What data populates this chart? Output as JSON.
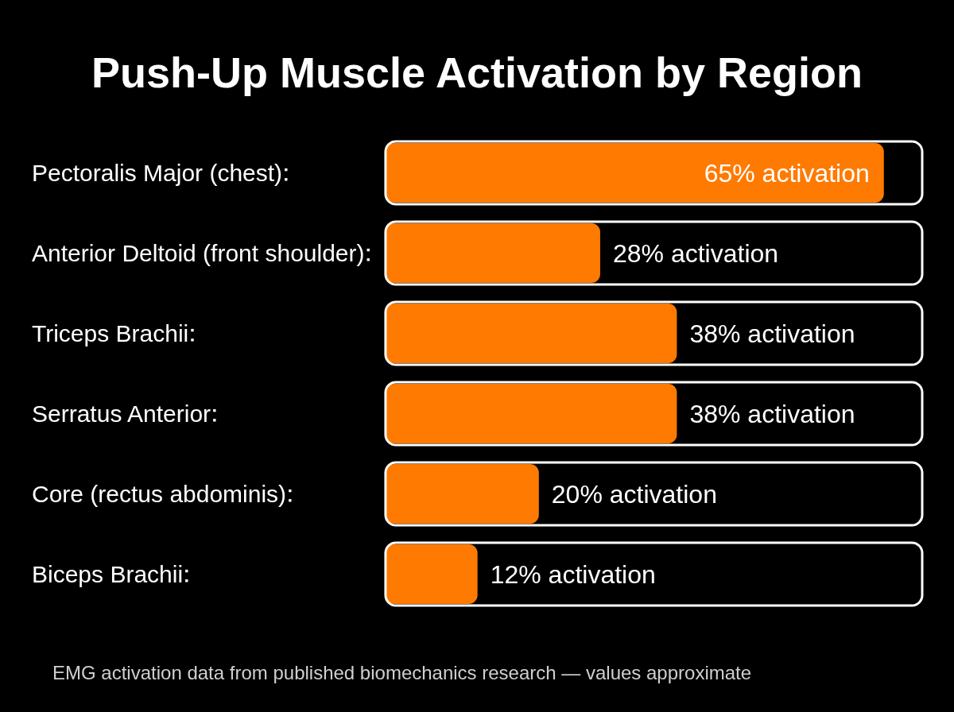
{
  "chart_data": {
    "type": "bar",
    "orientation": "horizontal",
    "title": "Push-Up Muscle Activation by Region",
    "categories": [
      "Pectoralis Major (chest)",
      "Anterior Deltoid (front shoulder)",
      "Triceps Brachii",
      "Serratus Anterior",
      "Core (rectus abdominis)",
      "Biceps Brachii"
    ],
    "values": [
      65,
      28,
      38,
      38,
      20,
      12
    ],
    "value_labels": [
      "65% activation",
      "28% activation",
      "38% activation",
      "38% activation",
      "20% activation",
      "12% activation"
    ],
    "color": "#ff7a00",
    "xlim": [
      0,
      70
    ],
    "tick_labels": "y",
    "annotations": [
      "EMG activation data from published biomechanics research — values approximate"
    ]
  }
}
